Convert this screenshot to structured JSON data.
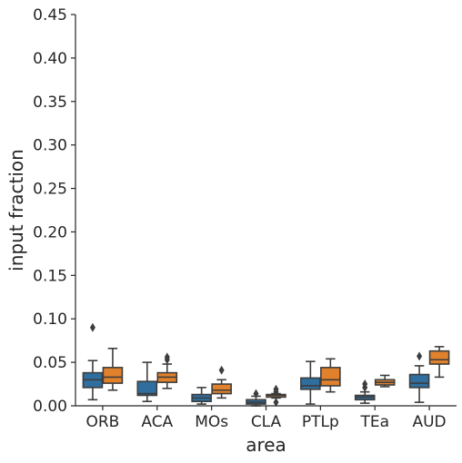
{
  "chart_data": {
    "type": "box",
    "title": "",
    "xlabel": "area",
    "ylabel": "input fraction",
    "ylim": [
      0,
      0.45
    ],
    "yticks": [
      "0.00",
      "0.05",
      "0.10",
      "0.15",
      "0.20",
      "0.25",
      "0.30",
      "0.35",
      "0.40",
      "0.45"
    ],
    "ytick_values": [
      0,
      0.05,
      0.1,
      0.15,
      0.2,
      0.25,
      0.3,
      0.35,
      0.4,
      0.45
    ],
    "categories": [
      "ORB",
      "ACA",
      "MOs",
      "CLA",
      "PTLp",
      "TEa",
      "AUD"
    ],
    "grid": false,
    "legend": "none",
    "series": [
      {
        "color": "#2f6e9e",
        "boxes": [
          {
            "whisker_low": 0.007,
            "q1": 0.021,
            "median": 0.03,
            "q3": 0.038,
            "whisker_high": 0.052,
            "outliers": [
              0.09
            ]
          },
          {
            "whisker_low": 0.005,
            "q1": 0.012,
            "median": 0.014,
            "q3": 0.028,
            "whisker_high": 0.05,
            "outliers": []
          },
          {
            "whisker_low": 0.002,
            "q1": 0.005,
            "median": 0.009,
            "q3": 0.013,
            "whisker_high": 0.021,
            "outliers": []
          },
          {
            "whisker_low": 0.0,
            "q1": 0.002,
            "median": 0.004,
            "q3": 0.007,
            "whisker_high": 0.011,
            "outliers": [
              0.014
            ]
          },
          {
            "whisker_low": 0.002,
            "q1": 0.019,
            "median": 0.023,
            "q3": 0.032,
            "whisker_high": 0.051,
            "outliers": []
          },
          {
            "whisker_low": 0.003,
            "q1": 0.007,
            "median": 0.01,
            "q3": 0.012,
            "whisker_high": 0.016,
            "outliers": [
              0.021,
              0.025
            ]
          },
          {
            "whisker_low": 0.004,
            "q1": 0.021,
            "median": 0.026,
            "q3": 0.036,
            "whisker_high": 0.046,
            "outliers": [
              0.057
            ]
          }
        ]
      },
      {
        "color": "#e1812c",
        "boxes": [
          {
            "whisker_low": 0.018,
            "q1": 0.026,
            "median": 0.033,
            "q3": 0.044,
            "whisker_high": 0.066,
            "outliers": []
          },
          {
            "whisker_low": 0.02,
            "q1": 0.027,
            "median": 0.033,
            "q3": 0.038,
            "whisker_high": 0.048,
            "outliers": [
              0.053,
              0.056
            ]
          },
          {
            "whisker_low": 0.009,
            "q1": 0.014,
            "median": 0.018,
            "q3": 0.025,
            "whisker_high": 0.03,
            "outliers": [
              0.041
            ]
          },
          {
            "whisker_low": 0.009,
            "q1": 0.01,
            "median": 0.012,
            "q3": 0.013,
            "whisker_high": 0.014,
            "outliers": [
              0.004,
              0.016,
              0.019
            ]
          },
          {
            "whisker_low": 0.016,
            "q1": 0.023,
            "median": 0.03,
            "q3": 0.044,
            "whisker_high": 0.054,
            "outliers": []
          },
          {
            "whisker_low": 0.022,
            "q1": 0.024,
            "median": 0.027,
            "q3": 0.03,
            "whisker_high": 0.035,
            "outliers": []
          },
          {
            "whisker_low": 0.033,
            "q1": 0.048,
            "median": 0.053,
            "q3": 0.063,
            "whisker_high": 0.068,
            "outliers": []
          }
        ]
      }
    ]
  }
}
